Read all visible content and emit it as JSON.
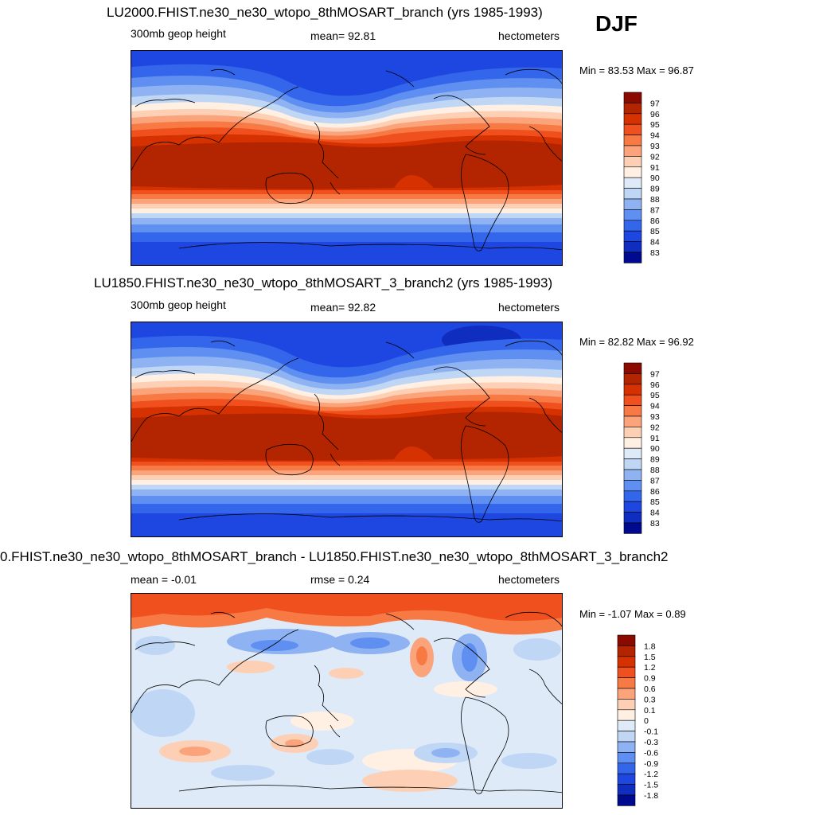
{
  "season": "DJF",
  "panels": [
    {
      "title": "LU2000.FHIST.ne30_ne30_wtopo_8thMOSART_branch (yrs 1985-1993)",
      "left_label": "300mb geop height",
      "mid_label": "mean=  92.81",
      "units": "hectometers",
      "minmax": "Min =  83.53 Max =  96.87"
    },
    {
      "title": "LU1850.FHIST.ne30_ne30_wtopo_8thMOSART_3_branch2 (yrs 1985-1993)",
      "left_label": "300mb geop height",
      "mid_label": "mean=  92.82",
      "units": "hectometers",
      "minmax": "Min =  82.82 Max =  96.92"
    },
    {
      "title": "0.FHIST.ne30_ne30_wtopo_8thMOSART_branch - LU1850.FHIST.ne30_ne30_wtopo_8thMOSART_3_branch2",
      "left_label": "mean =  -0.01",
      "mid_label": "rmse =   0.24",
      "units": "hectometers",
      "minmax": "Min =  -1.07 Max =   0.89"
    }
  ],
  "colorbar_abs": {
    "labels": [
      "97",
      "96",
      "95",
      "94",
      "93",
      "92",
      "91",
      "90",
      "89",
      "88",
      "87",
      "86",
      "85",
      "84",
      "83"
    ],
    "colors": [
      "#8a0a00",
      "#b32400",
      "#d63100",
      "#f0501e",
      "#f77a45",
      "#fba47b",
      "#fdd0b5",
      "#fff0e3",
      "#deeaf8",
      "#bfd6f5",
      "#8fb3f2",
      "#5f8ff0",
      "#3466ec",
      "#1e46e0",
      "#0f2dbf",
      "#000a8f"
    ]
  },
  "colorbar_diff": {
    "labels": [
      "1.8",
      "1.5",
      "1.2",
      "0.9",
      "0.6",
      "0.3",
      "0.1",
      "0",
      "-0.1",
      "-0.3",
      "-0.6",
      "-0.9",
      "-1.2",
      "-1.5",
      "-1.8"
    ],
    "colors": [
      "#8a0a00",
      "#b32400",
      "#d63100",
      "#f0501e",
      "#f77a45",
      "#fba47b",
      "#fdd0b5",
      "#fff0e3",
      "#deeaf8",
      "#bfd6f5",
      "#8fb3f2",
      "#5f8ff0",
      "#3466ec",
      "#1e46e0",
      "#0f2dbf",
      "#000a8f"
    ]
  }
}
